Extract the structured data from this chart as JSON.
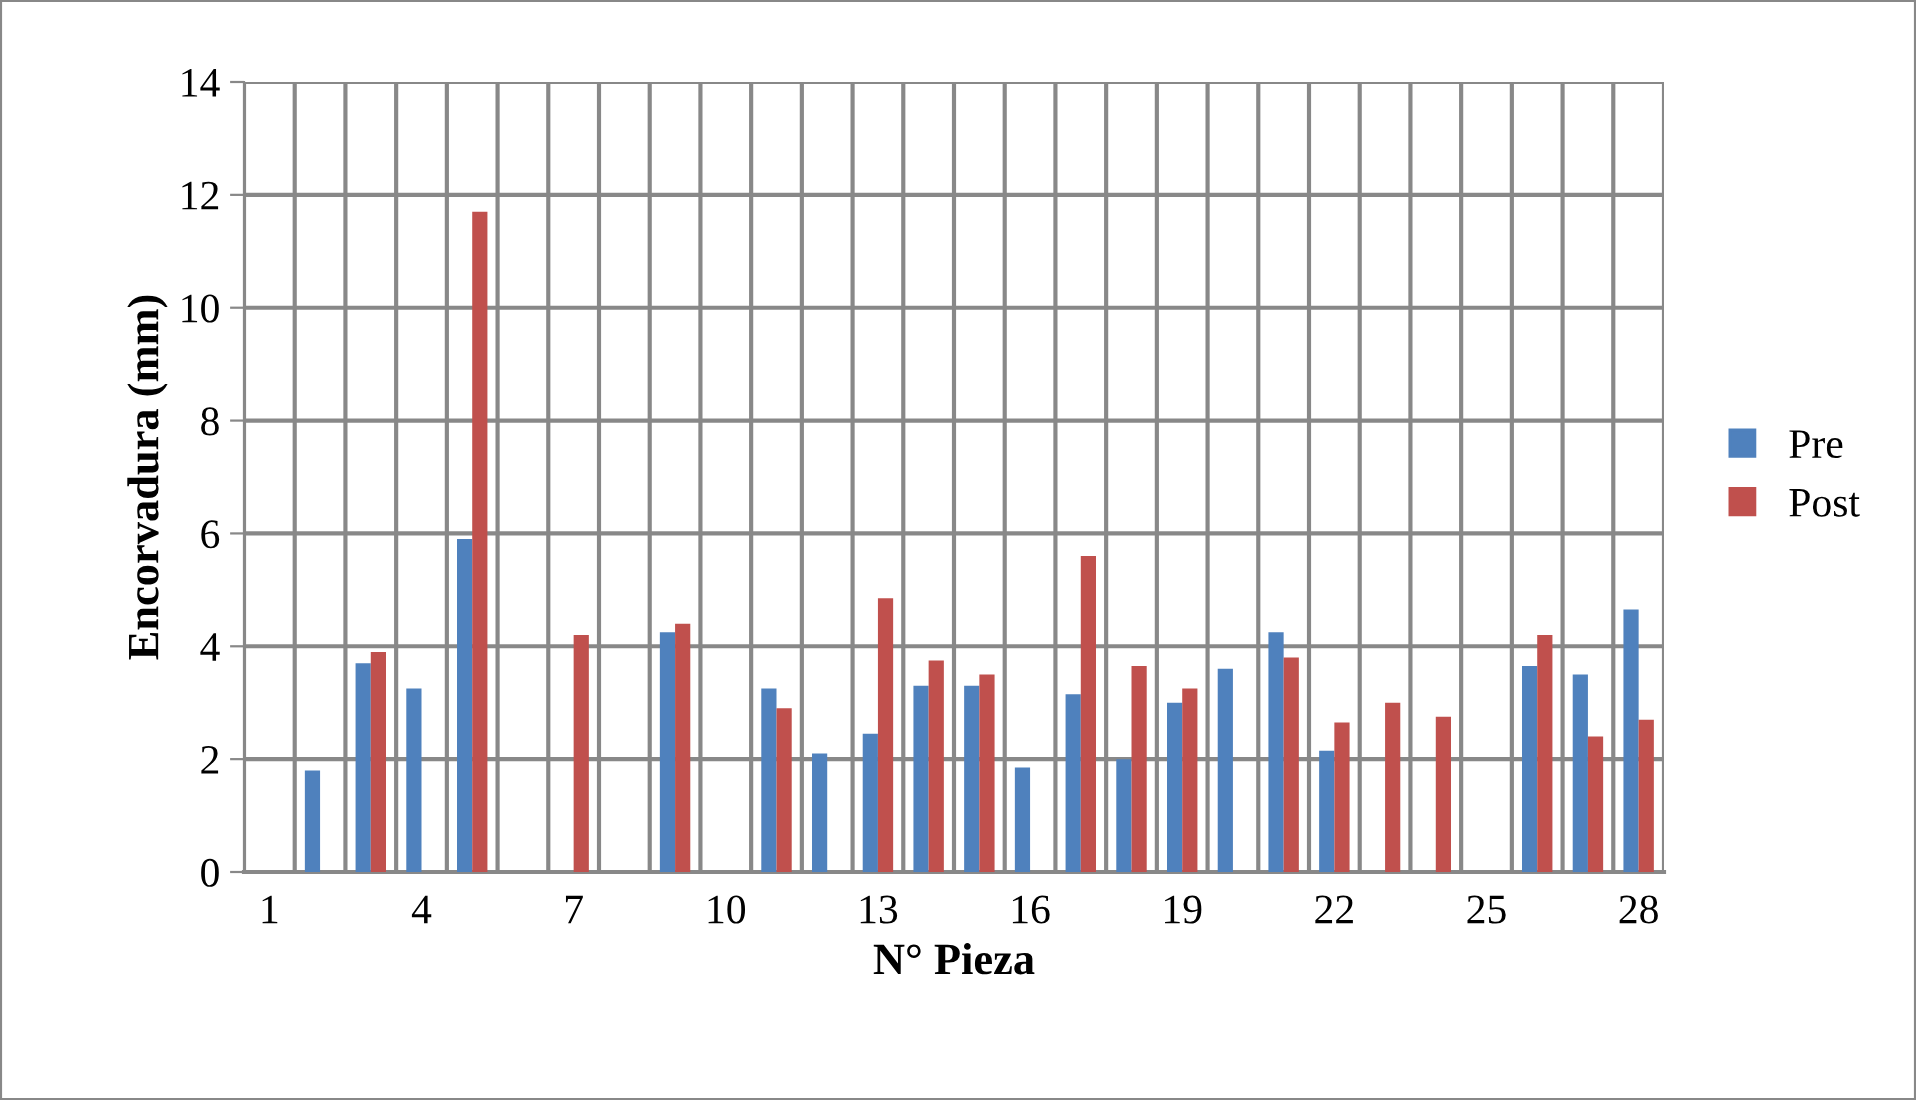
{
  "chart_data": {
    "type": "bar",
    "xlabel": "N° Pieza",
    "ylabel": "Encorvadura (mm)",
    "categories": [
      "1",
      null,
      null,
      "4",
      null,
      null,
      "7",
      null,
      null,
      "10",
      null,
      null,
      "13",
      null,
      null,
      "16",
      null,
      null,
      "19",
      null,
      null,
      "22",
      null,
      null,
      "25",
      null,
      null,
      "28"
    ],
    "series": [
      {
        "name": "Pre",
        "color": "#4f81bd",
        "values": [
          null,
          1.8,
          3.7,
          3.25,
          5.9,
          null,
          null,
          null,
          4.25,
          null,
          3.25,
          2.1,
          2.45,
          3.3,
          3.3,
          1.85,
          3.15,
          2.0,
          3.0,
          3.6,
          4.25,
          2.15,
          null,
          null,
          null,
          3.65,
          3.5,
          4.65
        ]
      },
      {
        "name": "Post",
        "color": "#c0504d",
        "values": [
          null,
          null,
          3.9,
          null,
          11.7,
          null,
          4.2,
          null,
          4.4,
          null,
          2.9,
          null,
          4.85,
          3.75,
          3.5,
          null,
          5.6,
          3.65,
          3.25,
          null,
          3.8,
          2.65,
          3.0,
          2.75,
          null,
          4.2,
          2.4,
          2.7
        ]
      }
    ],
    "ylim": [
      0,
      14
    ],
    "yticks": [
      0,
      2,
      4,
      6,
      8,
      10,
      12,
      14
    ],
    "grid": true,
    "legend": "right"
  }
}
